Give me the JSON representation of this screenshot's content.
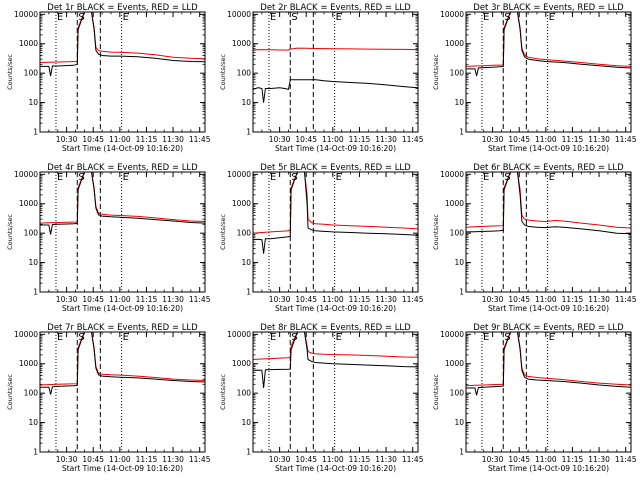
{
  "chart_data": {
    "type": "line",
    "layout": "3x3 grid of small multiples",
    "common": {
      "title_suffix": "BLACK = Events, RED = LLD",
      "xlabel": "Start Time (14-Oct-09 10:16:20)",
      "ylabel": "Counts/sec",
      "yscale": "log",
      "ylim": [
        1,
        12000
      ],
      "yticks": [
        1,
        10,
        100,
        1000,
        10000
      ],
      "ytick_labels": [
        "1",
        "10",
        "100",
        "1000",
        "10000"
      ],
      "xlim_min": [
        615,
        708
      ],
      "xticks_min": [
        630,
        645,
        660,
        675,
        690,
        705
      ],
      "xtick_labels": [
        "10:30",
        "10:45",
        "11:00",
        "11:15",
        "11:30",
        "11:45"
      ],
      "time_unit": "minutes after 00:00 (10:30 = 630)",
      "series_names": [
        "Events",
        "LLD"
      ],
      "series_colors": {
        "Events": "#000000",
        "LLD": "#ee0000"
      },
      "marker_labels": [
        "E",
        "S",
        "E"
      ],
      "grid": false
    },
    "panels": [
      {
        "title": "Det 1r BLACK = Events, RED = LLD",
        "markers_dotted": [
          624,
          661
        ],
        "markers_dashed": [
          636,
          649
        ],
        "series": [
          {
            "name": "Events",
            "x": [
              615,
              620,
              621,
              622,
              625,
              628,
              631,
              634,
              636,
              636.5,
              640,
              644,
              645.5,
              646.5,
              648,
              650,
              655,
              660,
              670,
              680,
              690,
              700,
              708
            ],
            "y": [
              170,
              170,
              80,
              175,
              175,
              180,
              182,
              185,
              200,
              3000,
              12000,
              12000,
              3000,
              600,
              440,
              400,
              380,
              380,
              360,
              320,
              270,
              250,
              245
            ]
          },
          {
            "name": "LLD",
            "x": [
              615,
              620,
              625,
              631,
              636,
              636.5,
              640,
              644,
              645.5,
              646.5,
              648,
              650,
              655,
              660,
              670,
              680,
              690,
              700,
              708
            ],
            "y": [
              230,
              235,
              240,
              245,
              250,
              3500,
              12000,
              12000,
              3500,
              750,
              600,
              560,
              520,
              510,
              480,
              420,
              350,
              320,
              310
            ]
          }
        ]
      },
      {
        "title": "Det 2r BLACK = Events, RED = LLD",
        "markers_dotted": [
          624,
          661
        ],
        "markers_dashed": [
          636,
          649
        ],
        "series": [
          {
            "name": "Events",
            "x": [
              615,
              618,
              620,
              621,
              622,
              625,
              630,
              633,
              635,
              636,
              650,
              650.5,
              655,
              660,
              670,
              680,
              690,
              700,
              708
            ],
            "y": [
              28,
              32,
              30,
              10,
              30,
              30,
              32,
              30,
              28,
              60,
              60,
              60,
              55,
              52,
              48,
              45,
              40,
              35,
              32
            ]
          },
          {
            "name": "LLD",
            "x": [
              615,
              620,
              625,
              630,
              635,
              636,
              640,
              645,
              650,
              660,
              670,
              680,
              690,
              700,
              708
            ],
            "y": [
              620,
              630,
              625,
              615,
              610,
              660,
              710,
              700,
              690,
              680,
              670,
              660,
              650,
              640,
              630
            ]
          }
        ]
      },
      {
        "title": "Det 3r BLACK = Events, RED = LLD",
        "markers_dotted": [
          624,
          661
        ],
        "markers_dashed": [
          636,
          649
        ],
        "series": [
          {
            "name": "Events",
            "x": [
              615,
              620,
              621,
              622,
              625,
              630,
              634,
              636,
              636.5,
              640,
              644,
              645.5,
              646.5,
              648,
              650,
              655,
              660,
              670,
              680,
              690,
              700,
              708
            ],
            "y": [
              140,
              140,
              80,
              150,
              155,
              160,
              165,
              170,
              3000,
              12000,
              12000,
              3000,
              600,
              360,
              300,
              270,
              250,
              230,
              200,
              180,
              160,
              150
            ]
          },
          {
            "name": "LLD",
            "x": [
              615,
              620,
              625,
              630,
              636,
              636.5,
              640,
              644,
              645.5,
              646.5,
              648,
              650,
              655,
              660,
              670,
              680,
              690,
              700,
              708
            ],
            "y": [
              170,
              175,
              180,
              185,
              190,
              3500,
              12000,
              12000,
              3500,
              700,
              420,
              350,
              310,
              290,
              260,
              230,
              200,
              180,
              170
            ]
          }
        ]
      },
      {
        "title": "Det 4r BLACK = Events, RED = LLD",
        "markers_dotted": [
          624,
          661
        ],
        "markers_dashed": [
          636,
          649
        ],
        "series": [
          {
            "name": "Events",
            "x": [
              615,
              620,
              621,
              622,
              625,
              630,
              634,
              636,
              636.5,
              640,
              644,
              645.5,
              646.5,
              648,
              650,
              655,
              660,
              670,
              680,
              690,
              700,
              708
            ],
            "y": [
              190,
              190,
              90,
              195,
              200,
              205,
              210,
              215,
              3000,
              12000,
              12000,
              3000,
              700,
              420,
              380,
              360,
              350,
              320,
              290,
              260,
              230,
              220
            ]
          },
          {
            "name": "LLD",
            "x": [
              615,
              620,
              625,
              630,
              636,
              636.5,
              640,
              644,
              645.5,
              646.5,
              648,
              650,
              655,
              660,
              670,
              680,
              690,
              700,
              708
            ],
            "y": [
              220,
              225,
              230,
              235,
              240,
              3500,
              12000,
              12000,
              3500,
              800,
              480,
              440,
              410,
              400,
              370,
              330,
              290,
              260,
              250
            ]
          }
        ]
      },
      {
        "title": "Det 5r BLACK = Events, RED = LLD",
        "markers_dotted": [
          624,
          661
        ],
        "markers_dashed": [
          636,
          649
        ],
        "series": [
          {
            "name": "Events",
            "x": [
              615,
              618,
              620,
              621,
              622,
              625,
              630,
              635,
              636,
              636.5,
              640,
              644,
              645.5,
              646,
              648,
              650,
              655,
              660,
              670,
              680,
              690,
              700,
              708
            ],
            "y": [
              60,
              62,
              60,
              20,
              65,
              65,
              70,
              75,
              80,
              3000,
              12000,
              12000,
              1000,
              150,
              130,
              120,
              115,
              110,
              105,
              100,
              95,
              90,
              85
            ]
          },
          {
            "name": "LLD",
            "x": [
              615,
              620,
              625,
              630,
              635,
              636,
              636.5,
              640,
              644,
              645.5,
              646,
              648,
              650,
              655,
              660,
              670,
              680,
              690,
              700,
              708
            ],
            "y": [
              100,
              105,
              110,
              115,
              120,
              130,
              3500,
              12000,
              12000,
              2000,
              300,
              230,
              210,
              200,
              190,
              180,
              170,
              160,
              150,
              140
            ]
          }
        ]
      },
      {
        "title": "Det 6r BLACK = Events, RED = LLD",
        "markers_dotted": [
          624,
          661
        ],
        "markers_dashed": [
          636,
          649
        ],
        "series": [
          {
            "name": "Events",
            "x": [
              615,
              620,
              625,
              630,
              634,
              636,
              636.5,
              640,
              644,
              645.5,
              646.5,
              648,
              650,
              655,
              660,
              665,
              670,
              680,
              690,
              700,
              708
            ],
            "y": [
              110,
              112,
              115,
              118,
              120,
              125,
              3000,
              12000,
              12000,
              2000,
              250,
              190,
              170,
              160,
              155,
              165,
              160,
              140,
              120,
              100,
              95
            ]
          },
          {
            "name": "LLD",
            "x": [
              615,
              620,
              625,
              630,
              636,
              636.5,
              640,
              644,
              645.5,
              646.5,
              648,
              650,
              655,
              660,
              665,
              670,
              680,
              690,
              700,
              708
            ],
            "y": [
              160,
              165,
              170,
              175,
              180,
              3500,
              12000,
              12000,
              3000,
              400,
              300,
              280,
              260,
              250,
              270,
              260,
              220,
              190,
              160,
              150
            ]
          }
        ]
      },
      {
        "title": "Det 7r BLACK = Events, RED = LLD",
        "markers_dotted": [
          624,
          661
        ],
        "markers_dashed": [
          636,
          649
        ],
        "series": [
          {
            "name": "Events",
            "x": [
              615,
              620,
              621,
              622,
              625,
              630,
              634,
              636,
              636.5,
              640,
              644,
              645.5,
              646.5,
              648,
              650,
              655,
              660,
              670,
              680,
              690,
              700,
              708
            ],
            "y": [
              160,
              160,
              90,
              165,
              170,
              175,
              180,
              185,
              3000,
              12000,
              12000,
              3000,
              700,
              420,
              380,
              360,
              350,
              330,
              300,
              270,
              250,
              240
            ]
          },
          {
            "name": "LLD",
            "x": [
              615,
              620,
              625,
              630,
              636,
              636.5,
              640,
              644,
              645.5,
              646.5,
              648,
              650,
              655,
              660,
              670,
              680,
              690,
              700,
              708
            ],
            "y": [
              190,
              195,
              200,
              205,
              210,
              3500,
              12000,
              12000,
              3500,
              800,
              480,
              440,
              420,
              410,
              380,
              340,
              300,
              280,
              270
            ]
          }
        ]
      },
      {
        "title": "Det 8r BLACK = Events, RED = LLD",
        "markers_dotted": [
          624,
          661
        ],
        "markers_dashed": [
          636,
          649
        ],
        "series": [
          {
            "name": "Events",
            "x": [
              615,
              618,
              620,
              621,
              622,
              625,
              630,
              635,
              636,
              636.5,
              640,
              644,
              645.5,
              646,
              648,
              650,
              655,
              660,
              670,
              680,
              690,
              700,
              708
            ],
            "y": [
              600,
              610,
              600,
              150,
              620,
              630,
              640,
              650,
              660,
              3000,
              12000,
              12000,
              3000,
              1400,
              1200,
              1100,
              1050,
              1000,
              950,
              900,
              850,
              800,
              780
            ]
          },
          {
            "name": "LLD",
            "x": [
              615,
              620,
              625,
              630,
              635,
              636,
              636.5,
              640,
              644,
              645.5,
              646,
              648,
              650,
              655,
              660,
              670,
              680,
              690,
              700,
              708
            ],
            "y": [
              1400,
              1450,
              1500,
              1550,
              1600,
              1650,
              4000,
              12000,
              12000,
              4000,
              2600,
              2300,
              2200,
              2100,
              2050,
              2000,
              1900,
              1800,
              1700,
              1650
            ]
          }
        ]
      },
      {
        "title": "Det 9r BLACK = Events, RED = LLD",
        "markers_dotted": [
          624,
          661
        ],
        "markers_dashed": [
          636,
          649
        ],
        "series": [
          {
            "name": "Events",
            "x": [
              615,
              620,
              621,
              622,
              625,
              630,
              634,
              636,
              636.5,
              640,
              644,
              645.5,
              646.5,
              648,
              650,
              655,
              660,
              670,
              680,
              690,
              700,
              708
            ],
            "y": [
              150,
              150,
              85,
              155,
              160,
              165,
              170,
              175,
              3000,
              12000,
              12000,
              3000,
              600,
              350,
              300,
              280,
              270,
              250,
              220,
              190,
              170,
              160
            ]
          },
          {
            "name": "LLD",
            "x": [
              615,
              620,
              625,
              630,
              636,
              636.5,
              640,
              644,
              645.5,
              646.5,
              648,
              650,
              655,
              660,
              670,
              680,
              690,
              700,
              708
            ],
            "y": [
              180,
              185,
              190,
              195,
              200,
              3500,
              12000,
              12000,
              3500,
              700,
              420,
              370,
              340,
              320,
              290,
              250,
              220,
              200,
              190
            ]
          }
        ]
      }
    ]
  }
}
